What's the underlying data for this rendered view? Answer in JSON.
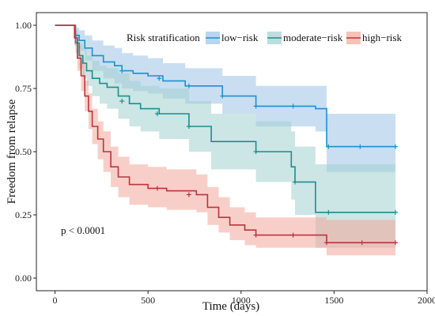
{
  "chart_data": {
    "type": "line",
    "xlabel": "Time (days)",
    "ylabel": "Freedom from relapse",
    "xlim": [
      -100,
      2000
    ],
    "ylim": [
      -0.05,
      1.05
    ],
    "xticks": [
      0,
      500,
      1000,
      1500,
      2000
    ],
    "xtick_labels": [
      "0",
      "500",
      "1000",
      "1500",
      "2000"
    ],
    "yticks": [
      0,
      0.25,
      0.5,
      0.75,
      1.0
    ],
    "ytick_labels": [
      "0.00",
      "0.25",
      "0.50",
      "0.75",
      "1.00"
    ],
    "legend": {
      "title": "Risk stratification",
      "position": "top-right"
    },
    "annotation": "p < 0.0001",
    "series": [
      {
        "name": "low−risk",
        "color": "#1f8fcf",
        "band_color": "#9cc3e6",
        "x": [
          0,
          95,
          110,
          130,
          160,
          200,
          260,
          320,
          360,
          420,
          500,
          580,
          700,
          900,
          1080,
          1280,
          1400,
          1460,
          1830
        ],
        "y": [
          1.0,
          1.0,
          0.96,
          0.94,
          0.91,
          0.88,
          0.855,
          0.84,
          0.82,
          0.81,
          0.8,
          0.78,
          0.76,
          0.72,
          0.68,
          0.68,
          0.67,
          0.52,
          0.52
        ],
        "lower": [
          1.0,
          1.0,
          0.93,
          0.9,
          0.86,
          0.82,
          0.79,
          0.77,
          0.75,
          0.74,
          0.73,
          0.71,
          0.69,
          0.65,
          0.6,
          0.6,
          0.58,
          0.42,
          0.42
        ],
        "upper": [
          1.0,
          1.0,
          0.99,
          0.98,
          0.96,
          0.94,
          0.92,
          0.91,
          0.89,
          0.88,
          0.87,
          0.85,
          0.83,
          0.8,
          0.76,
          0.76,
          0.76,
          0.65,
          0.65
        ],
        "censor_x": [
          360,
          560,
          720,
          900,
          1080,
          1280,
          1470,
          1640,
          1830
        ],
        "censor_y": [
          0.82,
          0.79,
          0.76,
          0.72,
          0.68,
          0.68,
          0.52,
          0.52,
          0.52
        ]
      },
      {
        "name": "moderate−risk",
        "color": "#1a8f8c",
        "band_color": "#a3cfcf",
        "x": [
          0,
          95,
          110,
          130,
          150,
          170,
          200,
          240,
          280,
          340,
          400,
          460,
          560,
          720,
          840,
          1080,
          1270,
          1290,
          1400,
          1830
        ],
        "y": [
          1.0,
          1.0,
          0.93,
          0.88,
          0.85,
          0.82,
          0.79,
          0.77,
          0.755,
          0.72,
          0.69,
          0.67,
          0.65,
          0.6,
          0.54,
          0.5,
          0.44,
          0.38,
          0.26,
          0.26
        ],
        "lower": [
          1.0,
          1.0,
          0.89,
          0.83,
          0.79,
          0.76,
          0.72,
          0.69,
          0.67,
          0.63,
          0.6,
          0.58,
          0.55,
          0.5,
          0.43,
          0.38,
          0.31,
          0.25,
          0.12,
          0.12
        ],
        "upper": [
          1.0,
          1.0,
          0.97,
          0.93,
          0.91,
          0.88,
          0.86,
          0.84,
          0.83,
          0.81,
          0.78,
          0.76,
          0.75,
          0.7,
          0.65,
          0.62,
          0.58,
          0.52,
          0.45,
          0.45
        ],
        "censor_x": [
          360,
          550,
          720,
          1080,
          1290,
          1470,
          1830
        ],
        "censor_y": [
          0.7,
          0.65,
          0.6,
          0.5,
          0.38,
          0.26,
          0.26
        ]
      },
      {
        "name": "high−risk",
        "color": "#b8353c",
        "band_color": "#f2a89a",
        "x": [
          0,
          95,
          105,
          120,
          140,
          160,
          180,
          200,
          230,
          260,
          300,
          340,
          400,
          500,
          600,
          760,
          820,
          880,
          940,
          1020,
          1080,
          1460,
          1830
        ],
        "y": [
          1.0,
          1.0,
          0.95,
          0.87,
          0.8,
          0.72,
          0.66,
          0.6,
          0.55,
          0.5,
          0.44,
          0.4,
          0.37,
          0.355,
          0.345,
          0.33,
          0.28,
          0.24,
          0.21,
          0.19,
          0.17,
          0.14,
          0.14
        ],
        "lower": [
          1.0,
          1.0,
          0.92,
          0.82,
          0.74,
          0.66,
          0.59,
          0.53,
          0.47,
          0.42,
          0.36,
          0.32,
          0.29,
          0.28,
          0.27,
          0.26,
          0.21,
          0.18,
          0.15,
          0.13,
          0.12,
          0.09,
          0.09
        ],
        "upper": [
          1.0,
          1.0,
          0.98,
          0.92,
          0.86,
          0.78,
          0.73,
          0.67,
          0.62,
          0.58,
          0.52,
          0.48,
          0.45,
          0.44,
          0.43,
          0.41,
          0.36,
          0.32,
          0.28,
          0.26,
          0.24,
          0.23,
          0.23
        ],
        "censor_x": [
          550,
          720,
          1080,
          1280,
          1460,
          1650,
          1830
        ],
        "censor_y": [
          0.355,
          0.33,
          0.17,
          0.17,
          0.14,
          0.14,
          0.14
        ]
      }
    ]
  }
}
